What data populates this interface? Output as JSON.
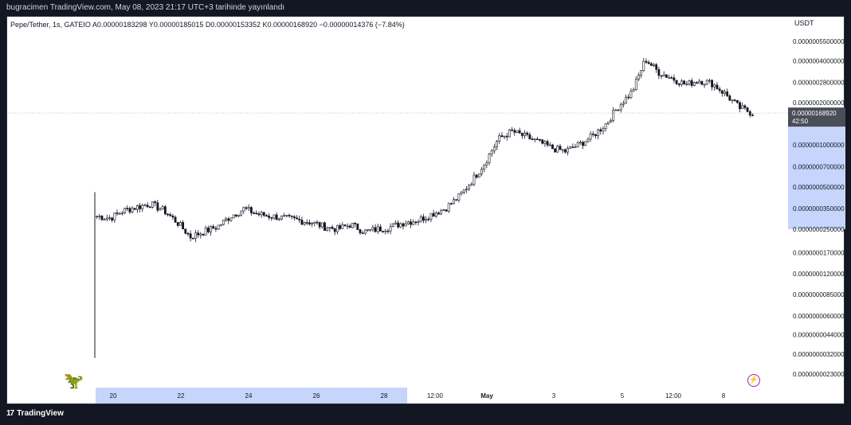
{
  "header": {
    "published_text": "bugracimen TradingView.com, May 08, 2023 21:17 UTC+3 tarihinde yayınlandı"
  },
  "legend": {
    "symbol": "Pepe/Tether, 1s, GATEIO",
    "open": "A0.00000183298",
    "high": "Y0.00000185015",
    "low": "D0.00000153352",
    "close": "K0.00000168920",
    "change": "−0.00000014376 (−7.84%)"
  },
  "price_axis": {
    "currency": "USDT",
    "last_price": "0.00000168920",
    "countdown": "42:50"
  },
  "footer": {
    "brand": "TradingView",
    "brand_mark": "17"
  },
  "colors": {
    "background": "#ffffff",
    "candle": "#131722",
    "price_line": "#9598a1",
    "axis_highlight": "#c7d4fb",
    "last_price_badge": "#4a4e59",
    "accent": "#9c27b0"
  },
  "chart_data": {
    "type": "candlestick",
    "scale": "log",
    "y_ticks": [
      "0.0000005500000",
      "0.0000004000000",
      "0.0000002800000",
      "0.0000002000000",
      "0.0000001000000",
      "0.0000000700000",
      "0.0000000500000",
      "0.0000000350000",
      "0.0000000250000",
      "0.0000000170000",
      "0.0000000120000",
      "0.0000000085000",
      "0.0000000060000",
      "0.0000000044000",
      "0.0000000032000",
      "0.0000000023000"
    ],
    "x_ticks": [
      "20",
      "22",
      "24",
      "26",
      "28",
      "12:00",
      "May",
      "3",
      "5",
      "12:00",
      "8"
    ],
    "ylim": [
      "0.0000000023",
      "0.00000055"
    ],
    "approx_close_series": [
      3.1e-08,
      3e-08,
      3.4e-08,
      3.6e-08,
      3.8e-08,
      3.4e-08,
      2.8e-08,
      2.2e-08,
      2.4e-08,
      2.6e-08,
      3.1e-08,
      3.5e-08,
      3.2e-08,
      3.1e-08,
      3e-08,
      2.9e-08,
      2.8e-08,
      2.6e-08,
      2.5e-08,
      2.7e-08,
      2.4e-08,
      2.5e-08,
      2.6e-08,
      2.8e-08,
      2.9e-08,
      3.2e-08,
      3.5e-08,
      4.2e-08,
      5.5e-08,
      7.5e-08,
      1.1e-07,
      1.25e-07,
      1.15e-07,
      1.05e-07,
      9.5e-08,
      9e-08,
      1e-07,
      1.15e-07,
      1.4e-07,
      1.9e-07,
      2.4e-07,
      4.1e-07,
      3.3e-07,
      3e-07,
      2.7e-07,
      2.9e-07,
      2.75e-07,
      2.3e-07,
      1.85e-07,
      1.6892e-07
    ],
    "last_value": 1.689e-07
  }
}
